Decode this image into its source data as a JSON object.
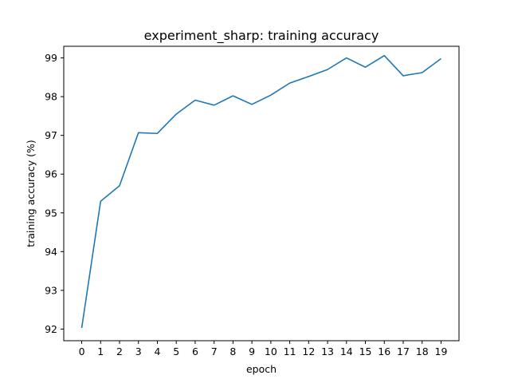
{
  "chart_data": {
    "type": "line",
    "title": "experiment_sharp: training accuracy",
    "xlabel": "epoch",
    "ylabel": "training accuracy (%)",
    "x": [
      0,
      1,
      2,
      3,
      4,
      5,
      6,
      7,
      8,
      9,
      10,
      11,
      12,
      13,
      14,
      15,
      16,
      17,
      18,
      19
    ],
    "x_ticks": [
      "0",
      "1",
      "2",
      "3",
      "4",
      "5",
      "6",
      "7",
      "8",
      "9",
      "10",
      "11",
      "12",
      "13",
      "14",
      "15",
      "16",
      "17",
      "18",
      "19"
    ],
    "y_ticks": [
      "92",
      "93",
      "94",
      "95",
      "96",
      "97",
      "98",
      "99"
    ],
    "ylim": [
      91.7,
      99.3
    ],
    "xlim": [
      -0.95,
      19.95
    ],
    "grid": false,
    "legend": "none",
    "series": [
      {
        "values": [
          92.03,
          95.3,
          95.7,
          97.07,
          97.05,
          97.55,
          97.91,
          97.78,
          98.02,
          97.8,
          98.04,
          98.35,
          98.52,
          98.7,
          99.0,
          98.76,
          99.06,
          98.54,
          98.62,
          98.98
        ],
        "color": "#1f77b4"
      }
    ]
  }
}
